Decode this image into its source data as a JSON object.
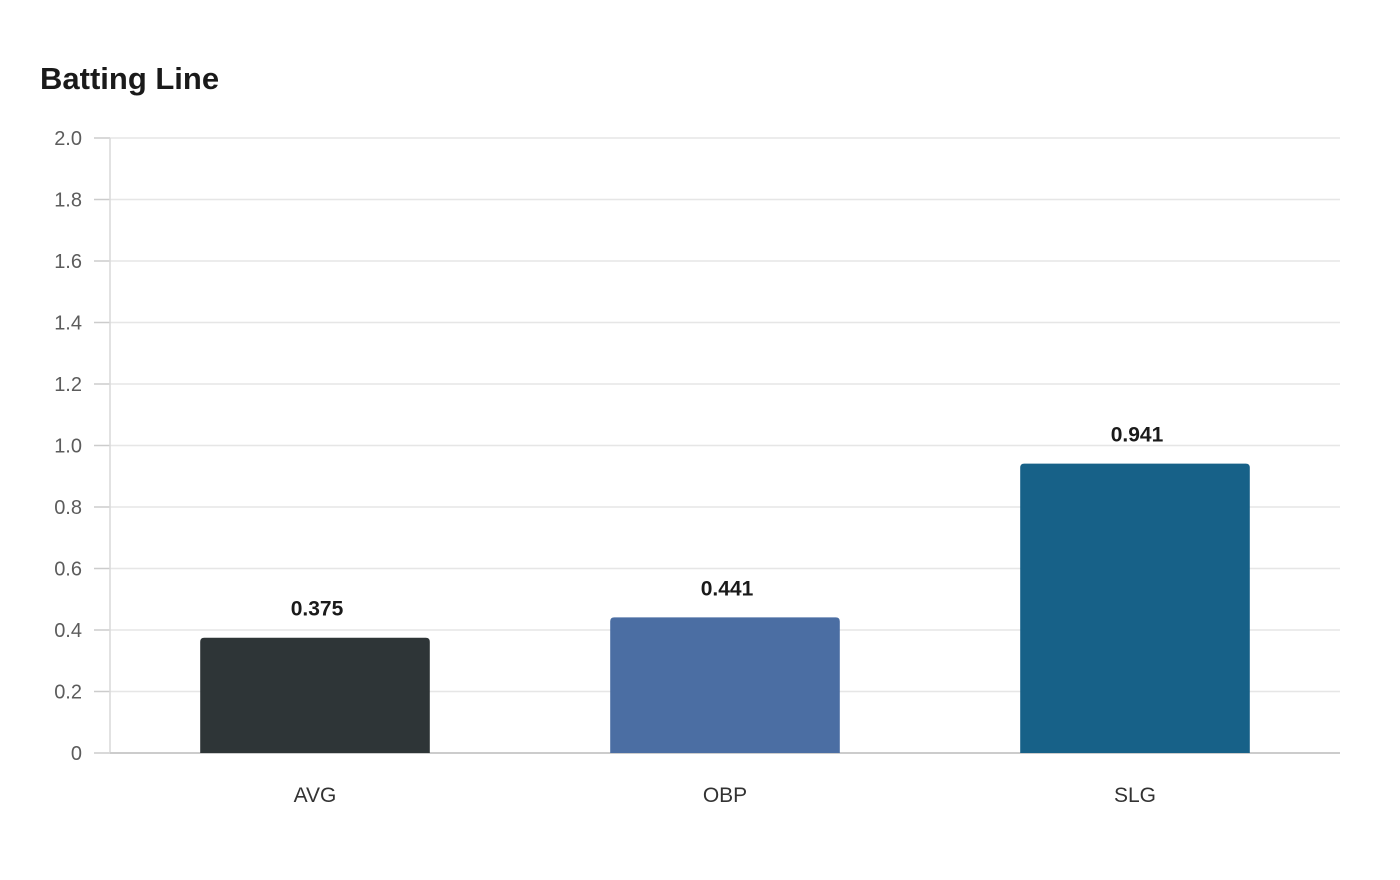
{
  "chart_data": {
    "type": "bar",
    "title": "Batting Line",
    "xlabel": "",
    "ylabel": "",
    "categories": [
      "AVG",
      "OBP",
      "SLG"
    ],
    "values": [
      0.375,
      0.441,
      0.941
    ],
    "data_labels": [
      "0.375",
      "0.441",
      "0.941"
    ],
    "colors": [
      "#2e3537",
      "#4b6ea3",
      "#176188"
    ],
    "ylim": [
      0,
      2.0
    ],
    "yticks": [
      0,
      0.2,
      0.4,
      0.6,
      0.8,
      1.0,
      1.2,
      1.4,
      1.6,
      1.8,
      2.0
    ],
    "ytick_labels": [
      "0",
      "0.2",
      "0.4",
      "0.6",
      "0.8",
      "1.0",
      "1.2",
      "1.4",
      "1.6",
      "1.8",
      "2.0"
    ],
    "grid": true,
    "legend": "none"
  }
}
